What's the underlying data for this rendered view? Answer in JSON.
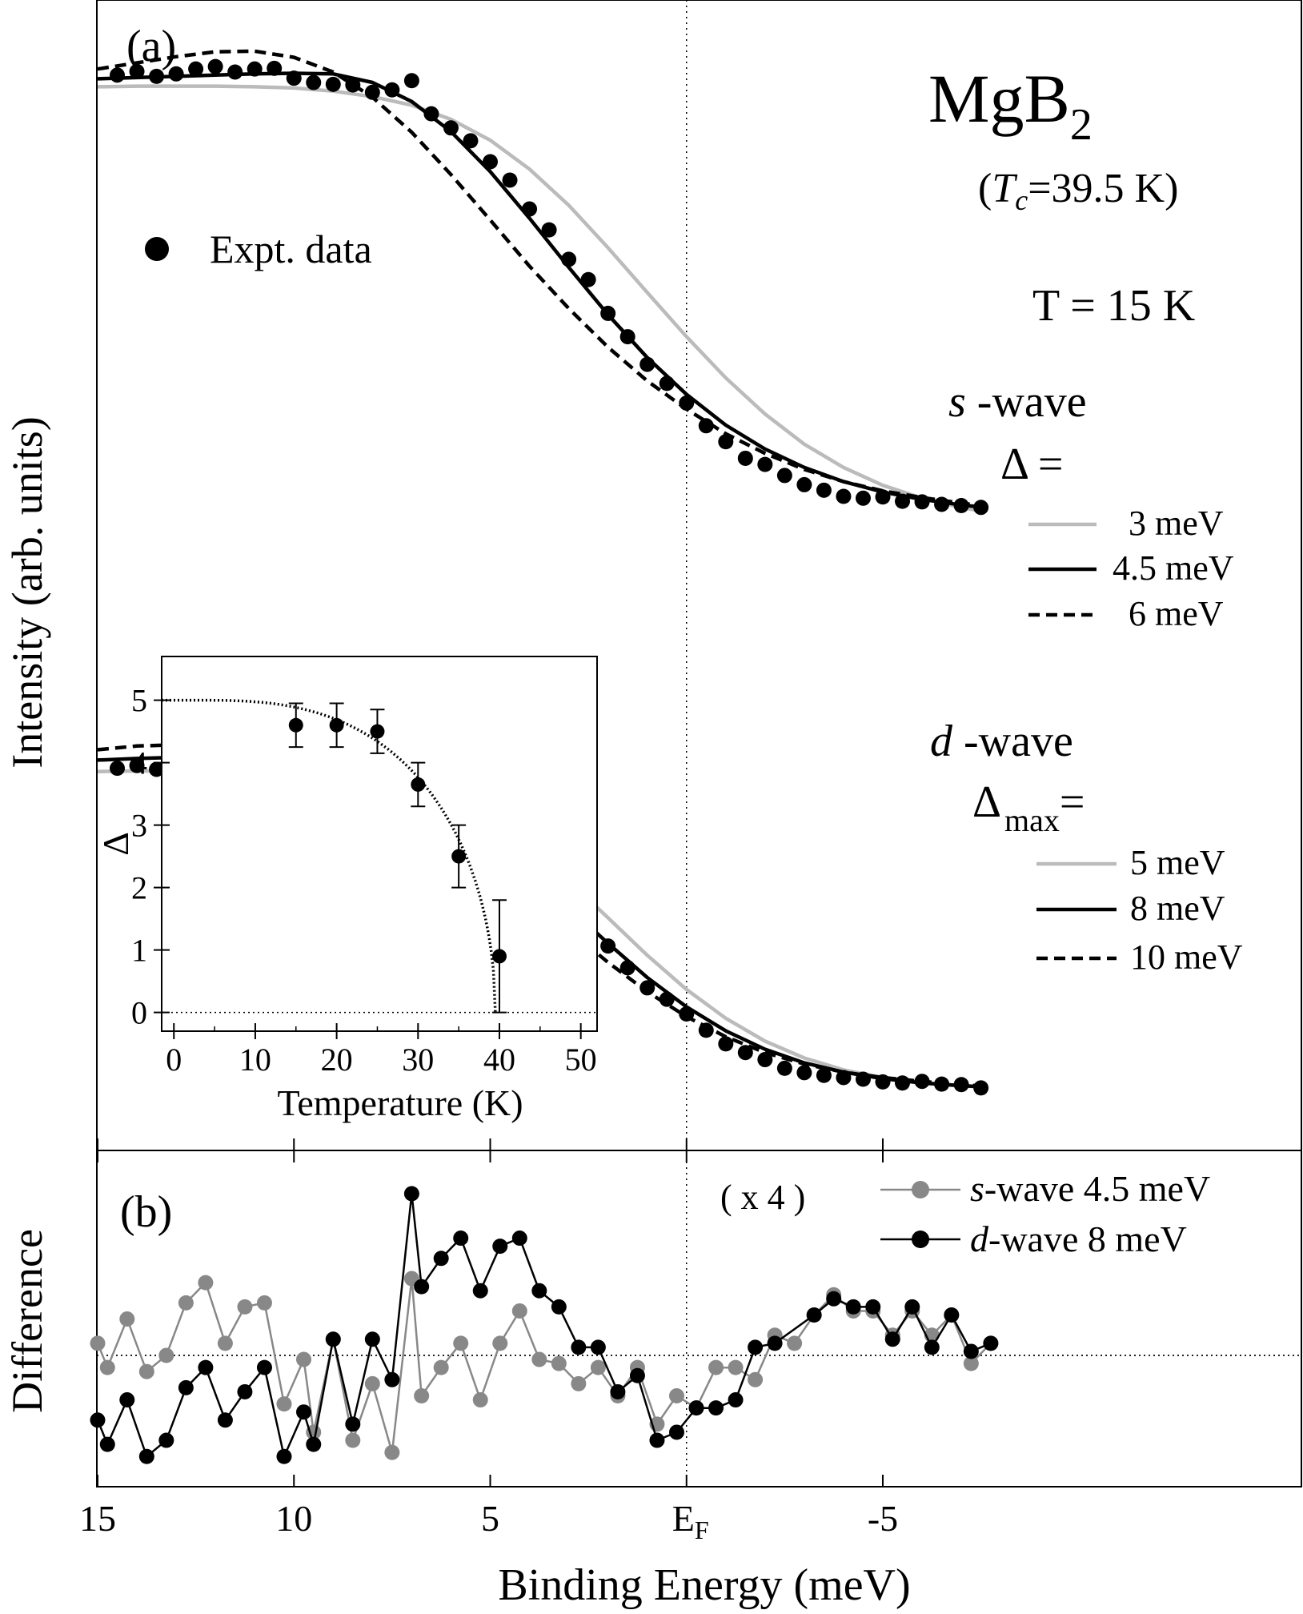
{
  "chart_data": [
    {
      "panel": "a",
      "panel_label": "(a)",
      "type": "line",
      "ylabel": "Intensity (arb. units)",
      "x_axis": "Binding Energy (meV)",
      "xlim": [
        15.2,
        -8.0
      ],
      "x_direction": "reversed",
      "ylim": [
        0,
        1
      ],
      "y_ticks_shown": false,
      "annotations": {
        "compound_main": "MgB",
        "compound_sub": "2",
        "tc_open": "(",
        "tc_symbol": "T",
        "tc_sub": "c",
        "tc_value": "=39.5 K)",
        "temperature": "T = 15 K",
        "s_wave_symbol": "s",
        "s_wave_word": " -wave",
        "s_delta": "Δ =",
        "d_wave_symbol": "d",
        "d_wave_word": " -wave",
        "d_delta": "Δ",
        "d_delta_sub": "max",
        "d_delta_eq": "="
      },
      "expt_legend": "Expt. data",
      "s_wave_legend": [
        "3 meV",
        "4.5 meV",
        "6 meV"
      ],
      "d_wave_legend": [
        "5 meV",
        "8 meV",
        "10 meV"
      ],
      "colors": {
        "solid_light": "#bbbbbb",
        "solid_dark": "#000000",
        "dashed": "#000000"
      },
      "x_sample": [
        15.0,
        14.0,
        13.0,
        12.0,
        11.0,
        10.0,
        9.0,
        8.0,
        7.0,
        6.0,
        5.0,
        4.0,
        3.0,
        2.0,
        1.0,
        0.0,
        -1.0,
        -2.0,
        -3.0,
        -4.0,
        -5.0,
        -6.0,
        -7.0,
        -7.6
      ],
      "upper_curves": [
        {
          "name": "3 meV",
          "style": "solid_light",
          "y": [
            0.873,
            0.874,
            0.874,
            0.874,
            0.873,
            0.871,
            0.866,
            0.857,
            0.843,
            0.82,
            0.786,
            0.739,
            0.68,
            0.611,
            0.538,
            0.466,
            0.399,
            0.34,
            0.291,
            0.253,
            0.224,
            0.203,
            0.188,
            0.181
          ]
        },
        {
          "name": "4.5 meV",
          "style": "solid_dark",
          "y": [
            0.886,
            0.888,
            0.89,
            0.892,
            0.894,
            0.895,
            0.894,
            0.88,
            0.849,
            0.8,
            0.735,
            0.659,
            0.579,
            0.502,
            0.432,
            0.372,
            0.322,
            0.283,
            0.253,
            0.23,
            0.213,
            0.201,
            0.192,
            0.188
          ]
        },
        {
          "name": "6 meV",
          "style": "dashed",
          "y": [
            0.902,
            0.912,
            0.922,
            0.93,
            0.931,
            0.921,
            0.897,
            0.856,
            0.799,
            0.73,
            0.656,
            0.581,
            0.512,
            0.449,
            0.394,
            0.348,
            0.308,
            0.276,
            0.25,
            0.23,
            0.215,
            0.204,
            0.195,
            0.19
          ]
        }
      ],
      "upper_points": {
        "x": [
          14.5,
          14.0,
          13.5,
          13.0,
          12.5,
          12.0,
          11.5,
          11.0,
          10.5,
          10.0,
          9.5,
          9.0,
          8.5,
          8.0,
          7.5,
          7.0,
          6.5,
          6.0,
          5.5,
          5.0,
          4.5,
          4.0,
          3.5,
          3.0,
          2.5,
          2.0,
          1.5,
          1.0,
          0.5,
          0.0,
          -0.5,
          -1.0,
          -1.5,
          -2.0,
          -2.5,
          -3.0,
          -3.5,
          -4.0,
          -4.5,
          -5.0,
          -5.5,
          -6.0,
          -6.5,
          -7.0,
          -7.5
        ],
        "y": [
          0.892,
          0.898,
          0.89,
          0.894,
          0.902,
          0.906,
          0.897,
          0.902,
          0.903,
          0.887,
          0.88,
          0.877,
          0.876,
          0.864,
          0.868,
          0.883,
          0.829,
          0.806,
          0.785,
          0.751,
          0.721,
          0.674,
          0.64,
          0.592,
          0.559,
          0.504,
          0.466,
          0.421,
          0.39,
          0.358,
          0.321,
          0.295,
          0.268,
          0.258,
          0.24,
          0.225,
          0.216,
          0.206,
          0.203,
          0.205,
          0.198,
          0.197,
          0.193,
          0.191,
          0.188
        ]
      },
      "lower_curves": [
        {
          "name": "5 meV",
          "style": "solid_light",
          "y": [
            0.594,
            0.595,
            0.595,
            0.595,
            0.594,
            0.592,
            0.587,
            0.578,
            0.562,
            0.537,
            0.501,
            0.452,
            0.393,
            0.325,
            0.256,
            0.193,
            0.14,
            0.098,
            0.067,
            0.045,
            0.031,
            0.022,
            0.016,
            0.013
          ]
        },
        {
          "name": "8 meV",
          "style": "solid_dark",
          "y": [
            0.615,
            0.618,
            0.62,
            0.621,
            0.62,
            0.616,
            0.606,
            0.589,
            0.561,
            0.522,
            0.471,
            0.411,
            0.344,
            0.278,
            0.215,
            0.161,
            0.117,
            0.083,
            0.058,
            0.041,
            0.029,
            0.021,
            0.016,
            0.014
          ]
        },
        {
          "name": "10 meV",
          "style": "dashed",
          "y": [
            0.634,
            0.641,
            0.643,
            0.64,
            0.631,
            0.616,
            0.595,
            0.565,
            0.526,
            0.479,
            0.425,
            0.365,
            0.303,
            0.243,
            0.189,
            0.143,
            0.106,
            0.077,
            0.056,
            0.041,
            0.031,
            0.024,
            0.018,
            0.015
          ]
        }
      ],
      "lower_points": {
        "x": [
          14.5,
          14.0,
          13.5,
          13.0,
          12.5,
          12.0,
          11.5,
          11.0,
          10.5,
          10.0,
          9.5,
          9.0,
          8.5,
          8.0,
          7.5,
          7.0,
          6.5,
          6.0,
          5.5,
          5.0,
          4.5,
          4.0,
          3.5,
          3.0,
          2.5,
          2.0,
          1.5,
          1.0,
          0.5,
          0.0,
          -0.5,
          -1.0,
          -1.5,
          -2.0,
          -2.5,
          -3.0,
          -3.5,
          -4.0,
          -4.5,
          -5.0,
          -5.5,
          -6.0,
          -6.5,
          -7.0,
          -7.5
        ],
        "y": [
          0.6,
          0.605,
          0.598,
          0.605,
          0.615,
          0.621,
          0.61,
          0.619,
          0.618,
          0.6,
          0.612,
          0.616,
          0.591,
          0.601,
          0.582,
          0.599,
          0.557,
          0.542,
          0.531,
          0.492,
          0.475,
          0.436,
          0.409,
          0.359,
          0.318,
          0.273,
          0.233,
          0.196,
          0.175,
          0.148,
          0.118,
          0.093,
          0.077,
          0.064,
          0.048,
          0.04,
          0.035,
          0.031,
          0.028,
          0.023,
          0.021,
          0.024,
          0.019,
          0.018,
          0.012
        ]
      }
    },
    {
      "panel": "inset",
      "type": "scatter",
      "xlabel": "Temperature (K)",
      "ylabel": "Δ",
      "xlim": [
        -1.5,
        52
      ],
      "ylim": [
        -0.3,
        5.7
      ],
      "x_ticks": [
        "0",
        "10",
        "20",
        "30",
        "40",
        "50"
      ],
      "y_ticks": [
        "0",
        "1",
        "2",
        "3",
        "4",
        "5"
      ],
      "x": [
        15,
        20,
        25,
        30,
        35,
        40
      ],
      "y": [
        4.6,
        4.6,
        4.5,
        3.65,
        2.5,
        0.9
      ],
      "err": [
        0.35,
        0.35,
        0.35,
        0.35,
        0.5,
        0.9
      ],
      "fit": {
        "style": "dotted",
        "delta0": 5.0,
        "tc": 39.5
      },
      "zero_line": "dotted"
    },
    {
      "panel": "b",
      "panel_label": "(b)",
      "type": "line",
      "xlabel": "Binding Energy (meV)",
      "ylabel": "Difference",
      "scale_note": "( x 4 )",
      "xlim": [
        15.2,
        -8.0
      ],
      "ylim": [
        -1.3,
        1.5
      ],
      "x_ticks": [
        "15",
        "10",
        "5",
        "E",
        "-5"
      ],
      "x_tick_values": [
        15,
        10,
        5,
        0,
        -5
      ],
      "fermi_label_main": "E",
      "fermi_label_sub": "F",
      "zero_line": "dotted",
      "fermi_line": "dotted",
      "series": [
        {
          "name_italic": "s",
          "name_rest": "-wave 4.5 meV",
          "color": "#888888",
          "x": [
            15.0,
            14.75,
            14.25,
            13.75,
            13.25,
            12.75,
            12.25,
            11.75,
            11.25,
            10.75,
            10.25,
            9.75,
            9.5,
            9.0,
            8.5,
            8.0,
            7.5,
            7.0,
            6.75,
            6.25,
            5.75,
            5.25,
            4.75,
            4.25,
            3.75,
            3.25,
            2.75,
            2.25,
            1.75,
            1.25,
            0.75,
            0.25,
            -0.25,
            -0.75,
            -1.25,
            -1.75,
            -2.25,
            -2.75,
            -3.25,
            -3.75,
            -4.25,
            -4.75,
            -5.25,
            -5.75,
            -6.25,
            -6.75,
            -7.25,
            -7.75
          ],
          "y": [
            0.15,
            -0.15,
            0.45,
            -0.2,
            0.0,
            0.65,
            0.9,
            0.15,
            0.6,
            0.65,
            -0.6,
            -0.05,
            -0.95,
            0.2,
            -1.05,
            -0.35,
            -1.2,
            0.95,
            -0.5,
            -0.15,
            0.15,
            -0.55,
            0.15,
            0.55,
            -0.05,
            -0.1,
            -0.35,
            -0.15,
            -0.5,
            -0.15,
            -0.85,
            -0.5,
            -0.65,
            -0.15,
            -0.15,
            -0.3,
            0.25,
            0.15,
            0.5,
            0.75,
            0.55,
            0.55,
            0.25,
            0.55,
            0.25,
            0.5,
            -0.1,
            0.15
          ]
        },
        {
          "name_italic": "d",
          "name_rest": "-wave 8 meV",
          "color": "#000000",
          "x": [
            15.0,
            14.75,
            14.25,
            13.75,
            13.25,
            12.75,
            12.25,
            11.75,
            11.25,
            10.75,
            10.25,
            9.75,
            9.5,
            9.0,
            8.5,
            8.0,
            7.5,
            7.0,
            6.75,
            6.25,
            5.75,
            5.25,
            4.75,
            4.25,
            3.75,
            3.25,
            2.75,
            2.25,
            1.75,
            1.25,
            0.75,
            0.25,
            -0.25,
            -0.75,
            -1.25,
            -1.75,
            -2.25,
            -3.25,
            -3.75,
            -4.25,
            -4.75,
            -5.25,
            -5.75,
            -6.25,
            -6.75,
            -7.25,
            -7.75
          ],
          "y": [
            -0.8,
            -1.1,
            -0.55,
            -1.25,
            -1.05,
            -0.4,
            -0.15,
            -0.8,
            -0.45,
            -0.15,
            -1.25,
            -0.7,
            -1.1,
            0.2,
            -0.85,
            0.2,
            -0.3,
            2.0,
            0.85,
            1.2,
            1.45,
            0.8,
            1.35,
            1.45,
            0.8,
            0.6,
            0.1,
            0.1,
            -0.45,
            -0.25,
            -1.05,
            -0.95,
            -0.65,
            -0.65,
            -0.55,
            0.1,
            0.15,
            0.5,
            0.7,
            0.6,
            0.6,
            0.2,
            0.6,
            0.1,
            0.5,
            0.05,
            0.15
          ]
        }
      ]
    }
  ]
}
